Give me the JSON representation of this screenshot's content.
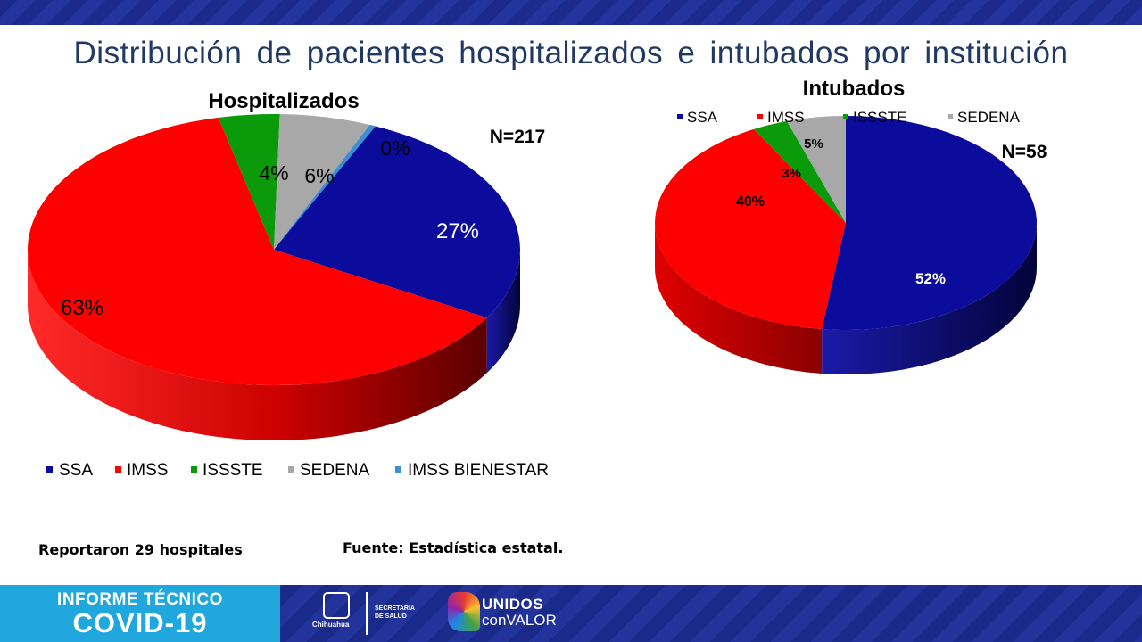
{
  "title": "Distribución de pacientes hospitalizados e intubados por institución",
  "colors": {
    "SSA": "#0c0c9c",
    "IMSS": "#ff0000",
    "ISSSTE": "#0a9a0a",
    "SEDENA": "#a8a8a8",
    "IMSS BIENESTAR": "#3a8fd6"
  },
  "chart_data": [
    {
      "type": "pie",
      "title": "Hospitalizados",
      "n_label": "N=217",
      "categories": [
        "SSA",
        "IMSS",
        "ISSSTE",
        "SEDENA",
        "IMSS BIENESTAR"
      ],
      "values": [
        27,
        63,
        4,
        6,
        0
      ],
      "labels": [
        "27%",
        "63%",
        "4%",
        "6%",
        "0%"
      ],
      "legend_position": "bottom"
    },
    {
      "type": "pie",
      "title": "Intubados",
      "n_label": "N=58",
      "categories": [
        "SSA",
        "IMSS",
        "ISSSTE",
        "SEDENA"
      ],
      "values": [
        52,
        40,
        3,
        5
      ],
      "labels": [
        "52%",
        "40%",
        "3%",
        "5%"
      ],
      "legend_position": "top"
    }
  ],
  "notes": {
    "hospitals": "Reportaron 29 hospitales",
    "source": "Fuente: Estadística estatal."
  },
  "footer": {
    "report_line1": "INFORME TÉCNICO",
    "report_line2": "COVID-19",
    "state": "Chihuahua",
    "secretaria": "SECRETARÍA",
    "salud": "DE SALUD",
    "brand1": "UNIDOS",
    "brand2": "conVALOR"
  }
}
